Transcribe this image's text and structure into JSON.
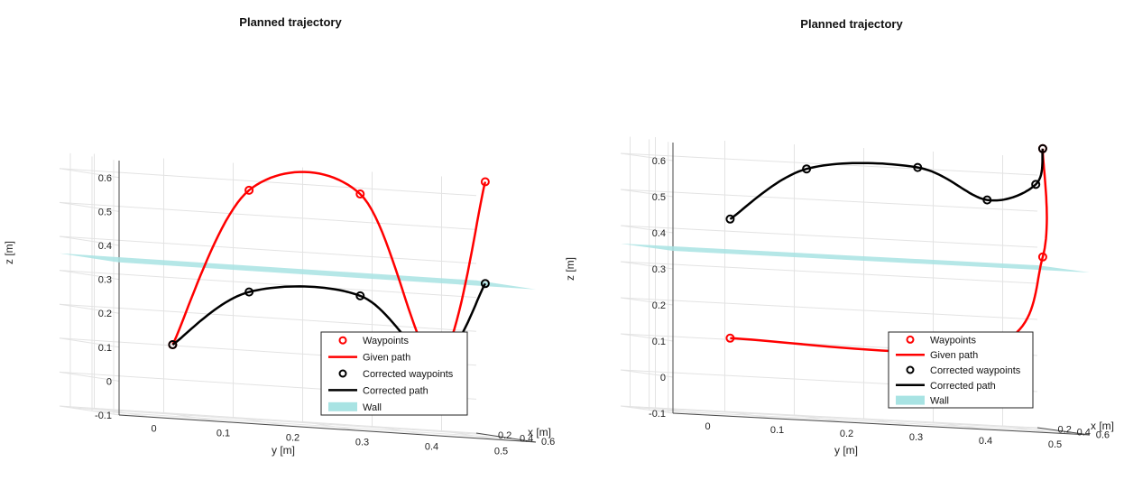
{
  "chart_data": [
    {
      "type": "line3d",
      "title": "Planned trajectory",
      "xlabel": "x [m]",
      "ylabel": "y [m]",
      "zlabel": "z [m]",
      "x_ticks": [
        "0.2",
        "0.4",
        "0.6"
      ],
      "y_ticks": [
        "0",
        "0.1",
        "0.2",
        "0.3",
        "0.4",
        "0.5"
      ],
      "z_ticks": [
        "0.6",
        "0.5",
        "0.4",
        "0.3",
        "0.2",
        "0.1",
        "0",
        "-0.1"
      ],
      "xlim": [
        0.1,
        0.65
      ],
      "ylim": [
        -0.05,
        0.55
      ],
      "zlim": [
        -0.1,
        0.65
      ],
      "grid": true,
      "legend_position": "bottom-right",
      "legend": [
        "Waypoints",
        "Given path",
        "Corrected waypoints",
        "Corrected path",
        "Wall"
      ],
      "colors": {
        "given": "#ff0000",
        "corrected": "#000000",
        "wall": "#a8e3e3"
      },
      "waypoints": [
        {
          "y": 0.07,
          "z": 0.11
        },
        {
          "y": 0.18,
          "z": 0.58
        },
        {
          "y": 0.34,
          "z": 0.59
        },
        {
          "y": 0.45,
          "z": 0.11
        },
        {
          "y": 0.52,
          "z": 0.65
        }
      ],
      "corrected_waypoints": [
        {
          "y": 0.07,
          "z": 0.11
        },
        {
          "y": 0.18,
          "z": 0.28
        },
        {
          "y": 0.34,
          "z": 0.29
        },
        {
          "y": 0.45,
          "z": 0.11
        },
        {
          "y": 0.52,
          "z": 0.35
        }
      ],
      "wall": {
        "z": 0.35
      }
    },
    {
      "type": "line3d",
      "title": "Planned trajectory",
      "xlabel": "x [m]",
      "ylabel": "y [m]",
      "zlabel": "z [m]",
      "x_ticks": [
        "0.2",
        "0.4",
        "0.6"
      ],
      "y_ticks": [
        "0",
        "0.1",
        "0.2",
        "0.3",
        "0.4",
        "0.5"
      ],
      "z_ticks": [
        "0.6",
        "0.5",
        "0.4",
        "0.3",
        "0.2",
        "0.1",
        "0",
        "-0.1"
      ],
      "xlim": [
        0.1,
        0.65
      ],
      "ylim": [
        -0.05,
        0.55
      ],
      "zlim": [
        -0.1,
        0.65
      ],
      "grid": true,
      "legend_position": "bottom-right",
      "legend": [
        "Waypoints",
        "Given path",
        "Corrected waypoints",
        "Corrected path",
        "Wall"
      ],
      "colors": {
        "given": "#ff0000",
        "corrected": "#000000",
        "wall": "#a8e3e3"
      },
      "waypoints": [
        {
          "y": 0.07,
          "z": 0.11
        },
        {
          "y": 0.44,
          "z": 0.12
        },
        {
          "y": 0.52,
          "z": 0.38
        },
        {
          "y": 0.52,
          "z": 0.68
        }
      ],
      "corrected_waypoints": [
        {
          "y": 0.07,
          "z": 0.44
        },
        {
          "y": 0.18,
          "z": 0.59
        },
        {
          "y": 0.34,
          "z": 0.61
        },
        {
          "y": 0.44,
          "z": 0.53
        },
        {
          "y": 0.51,
          "z": 0.58
        },
        {
          "y": 0.52,
          "z": 0.68
        }
      ],
      "wall": {
        "z": 0.35
      }
    }
  ]
}
